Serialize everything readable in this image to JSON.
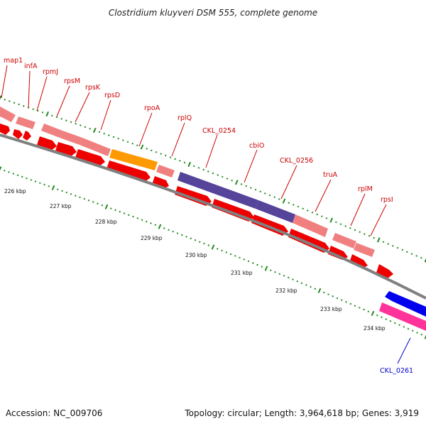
{
  "title": "Clostridium kluyveri DSM 555, complete genome",
  "footer": {
    "accession": "Accession: NC_009706",
    "summary": "Topology: circular; Length: 3,964,618 bp; Genes: 3,919"
  },
  "colors": {
    "backbone": "#808080",
    "cds": "#ee0000",
    "gene_pink": "#f08080",
    "orange": "#ff9900",
    "purple": "#554499",
    "blue": "#0000ee",
    "magenta": "#ff3399",
    "ticks": "#228b22",
    "label_red": "#cc0000",
    "label_blue": "#0000cc"
  },
  "ticks": [
    "226 kbp",
    "227 kbp",
    "228 kbp",
    "229 kbp",
    "230 kbp",
    "231 kbp",
    "232 kbp",
    "233 kbp",
    "234 kbp"
  ],
  "gene_labels": [
    "map1",
    "infA",
    "rpmJ",
    "rpsM",
    "rpsK",
    "rpsD",
    "rpoA",
    "rplQ",
    "CKL_0254",
    "cbiO",
    "CKL_0256",
    "truA",
    "rplM",
    "rpsI",
    "CKL_0261"
  ]
}
